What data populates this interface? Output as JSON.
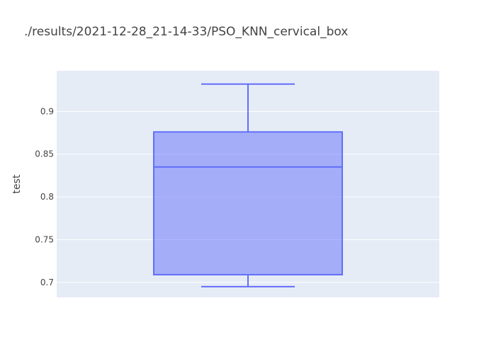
{
  "chart_data": {
    "type": "box",
    "title": "./results/2021-12-28_21-14-33/PSO_KNN_cervical_box",
    "xlabel": "",
    "ylabel": "test",
    "ylim": [
      0.6825,
      0.9475
    ],
    "y_ticks": [
      0.7,
      0.75,
      0.8,
      0.85,
      0.9
    ],
    "y_tick_labels": [
      "0.7",
      "0.75",
      "0.8",
      "0.85",
      "0.9"
    ],
    "grid": true,
    "series": [
      {
        "lowerfence": 0.695,
        "q1": 0.709,
        "median": 0.835,
        "q3": 0.876,
        "upperfence": 0.932
      }
    ],
    "colors": {
      "plot_background": "#e5ecf6",
      "grid": "#ffffff",
      "box_line": "#636efa",
      "box_fill": "rgba(99,110,250,0.5)",
      "text": "#444444"
    }
  }
}
